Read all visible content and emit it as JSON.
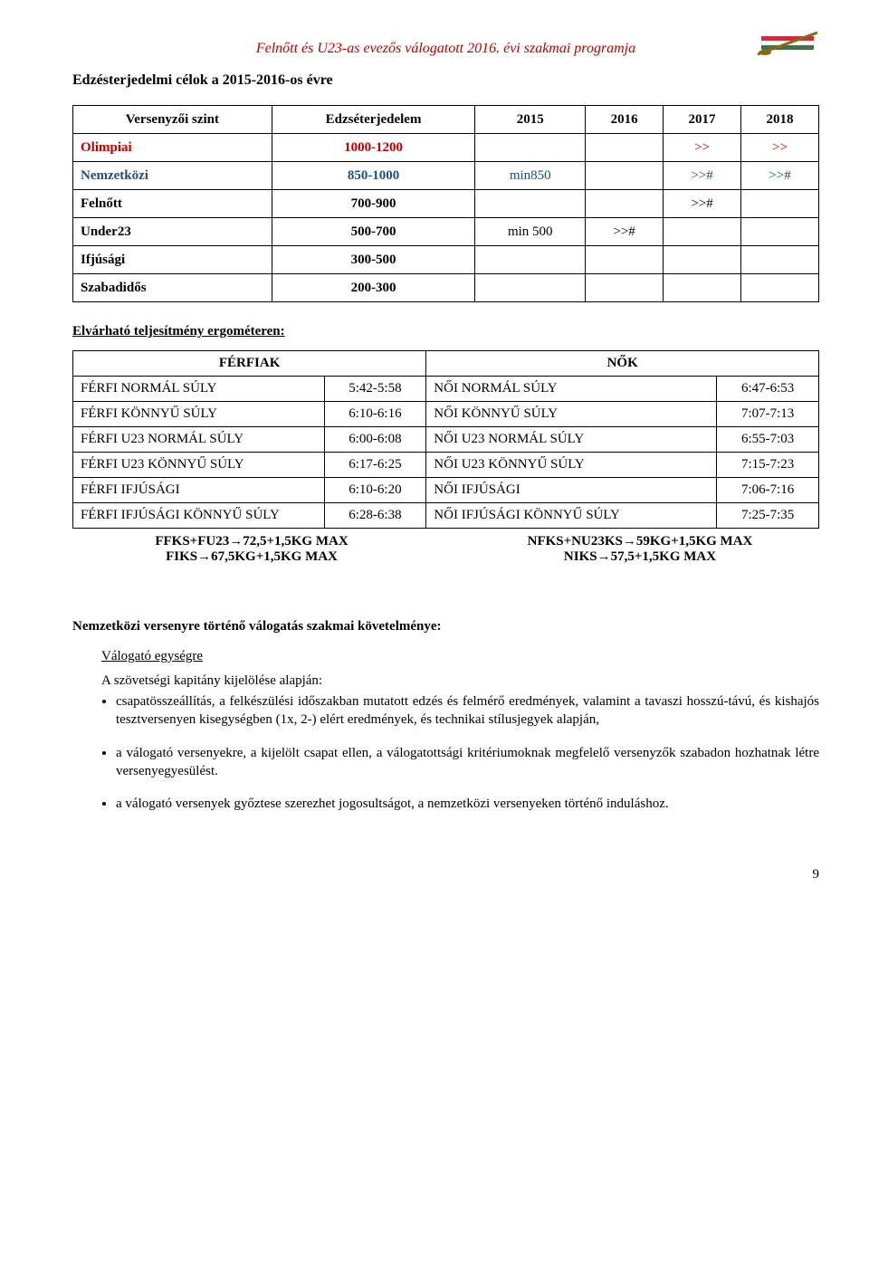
{
  "header": {
    "title": "Felnőtt és U23-as evezős válogatott 2016. évi szakmai programja",
    "title_color": "#c00000"
  },
  "section1": {
    "heading": "Edzésterjedelmi célok a 2015-2016-os évre",
    "columns": [
      "Versenyzői szint",
      "Edzséterjedelem",
      "2015",
      "2016",
      "2017",
      "2018"
    ],
    "rows": [
      {
        "name": "Olimpiai",
        "range": "1000-1200",
        "c2015": "",
        "c2016": "",
        "c2017": ">>",
        "c2018": ">>",
        "color": "#c00000"
      },
      {
        "name": "Nemzetközi",
        "range": "850-1000",
        "c2015": "min850",
        "c2016": "",
        "c2017": ">>#",
        "c2018": ">>#",
        "color": "#1f4e79"
      },
      {
        "name": "Felnőtt",
        "range": "700-900",
        "c2015": "",
        "c2016": "",
        "c2017": ">>#",
        "c2018": "",
        "color": "#000000"
      },
      {
        "name": "Under23",
        "range": "500-700",
        "c2015": "min 500",
        "c2016": ">>#",
        "c2017": "",
        "c2018": "",
        "color": "#000000"
      },
      {
        "name": "Ifjúsági",
        "range": "300-500",
        "c2015": "",
        "c2016": "",
        "c2017": "",
        "c2018": "",
        "color": "#000000"
      },
      {
        "name": "Szabadidős",
        "range": "200-300",
        "c2015": "",
        "c2016": "",
        "c2017": "",
        "c2018": "",
        "color": "#000000"
      }
    ]
  },
  "section2": {
    "heading": "Elvárható teljesítmény ergométeren:",
    "header_left": "FÉRFIAK",
    "header_right": "NŐK",
    "rows": [
      {
        "l": "FÉRFI NORMÁL SÚLY",
        "lt": "5:42-5:58",
        "r": "NŐI NORMÁL SÚLY",
        "rt": "6:47-6:53"
      },
      {
        "l": "FÉRFI KÖNNYŰ SÚLY",
        "lt": "6:10-6:16",
        "r": "NŐI KÖNNYŰ SÚLY",
        "rt": "7:07-7:13"
      },
      {
        "l": "FÉRFI U23 NORMÁL SÚLY",
        "lt": "6:00-6:08",
        "r": "NŐI U23 NORMÁL SÚLY",
        "rt": "6:55-7:03"
      },
      {
        "l": "FÉRFI U23 KÖNNYŰ SÚLY",
        "lt": "6:17-6:25",
        "r": "NŐI U23 KÖNNYŰ SÚLY",
        "rt": "7:15-7:23"
      },
      {
        "l": "FÉRFI IFJÚSÁGI",
        "lt": "6:10-6:20",
        "r": "NŐI IFJÚSÁGI",
        "rt": "7:06-7:16"
      },
      {
        "l": "FÉRFI IFJÚSÁGI KÖNNYŰ SÚLY",
        "lt": "6:28-6:38",
        "r": "NŐI IFJÚSÁGI KÖNNYŰ SÚLY",
        "rt": "7:25-7:35"
      }
    ],
    "footer": {
      "left1": "FFKS+FU23→72,5+1,5KG MAX",
      "left2": "FIKS→67,5KG+1,5KG MAX",
      "right1": "NFKS+NU23KS→59KG+1,5KG MAX",
      "right2": "NIKS→57,5+1,5KG MAX"
    }
  },
  "req": {
    "heading": "Nemzetközi versenyre történő válogatás szakmai követelménye:",
    "sub": "Válogató egységre",
    "intro": "A szövetségi kapitány kijelölése alapján:",
    "bullets": [
      "csapatösszeállítás, a felkészülési időszakban mutatott edzés és felmérő eredmények, valamint a tavaszi hosszú-távú, és kishajós tesztversenyen kisegységben (1x, 2-) elért eredmények, és technikai stílusjegyek alapján,",
      "a válogató versenyekre, a kijelölt csapat ellen, a válogatottsági kritériumoknak megfelelő versenyzők szabadon hozhatnak létre versenyegyesülést.",
      "a válogató versenyek győztese szerezhet jogosultságot, a nemzetközi versenyeken történő induláshoz."
    ]
  },
  "page_number": "9"
}
